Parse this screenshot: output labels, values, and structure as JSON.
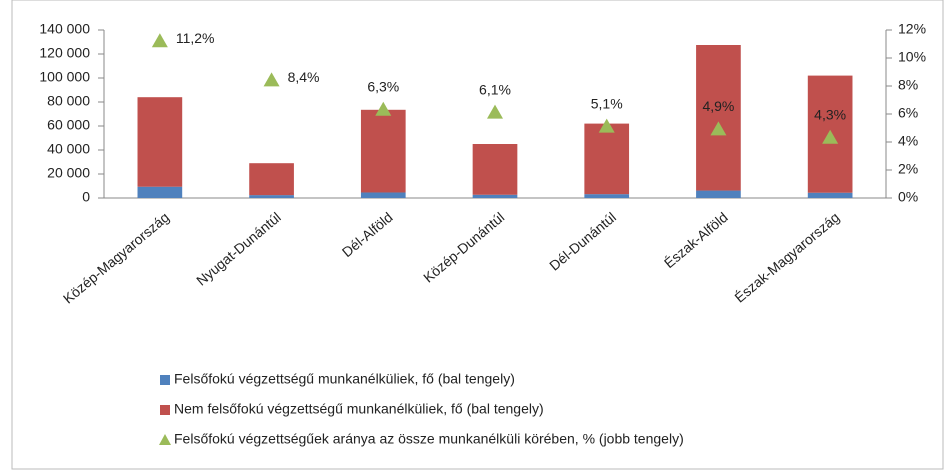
{
  "chart_data": {
    "type": "bar",
    "categories": [
      "Közép-Magyarország",
      "Nyugat-Dunántúl",
      "Dél-Alföld",
      "Közép-Dunántúl",
      "Dél-Dunántúl",
      "Észak-Alföld",
      "Észak-Magyarország"
    ],
    "stacked": true,
    "series": [
      {
        "name": "Felsőfokú végzettségű munkanélküliek, fő (bal tengely)",
        "color": "#4f81bd",
        "type": "bar",
        "values": [
          9400,
          2400,
          4600,
          2700,
          3200,
          6200,
          4400
        ]
      },
      {
        "name": "Nem felsőfokú végzettségű munkanélküliek, fő (bal tengely)",
        "color": "#c0504d",
        "type": "bar",
        "values": [
          74600,
          26600,
          68900,
          42300,
          58800,
          121300,
          97600
        ]
      },
      {
        "name": "Felsőfokú végzettségűek aránya az össze munkanélküli körében, % (jobb tengely)",
        "color": "#9bbb59",
        "type": "scatter",
        "axis": "y2",
        "values": [
          11.2,
          8.4,
          6.3,
          6.1,
          5.1,
          4.9,
          4.3
        ],
        "value_labels": [
          "11,2%",
          "8,4%",
          "6,3%",
          "6,1%",
          "5,1%",
          "4,9%",
          "4,3%"
        ]
      }
    ],
    "ylim": [
      0,
      140000
    ],
    "yticks": [
      0,
      {
        "value": 20000,
        "label": "20 000"
      },
      {
        "value": 40000,
        "label": "40 000"
      },
      {
        "value": 60000,
        "label": "60 000"
      },
      {
        "value": 80000,
        "label": "80 000"
      },
      {
        "value": 100000,
        "label": "100 000"
      },
      {
        "value": 120000,
        "label": "120 000"
      },
      {
        "value": 140000,
        "label": "140 000"
      }
    ],
    "y2lim": [
      0,
      12
    ],
    "y2ticks": [
      {
        "value": 0,
        "label": "0%"
      },
      {
        "value": 2,
        "label": "2%"
      },
      {
        "value": 4,
        "label": "4%"
      },
      {
        "value": 6,
        "label": "6%"
      },
      {
        "value": 8,
        "label": "8%"
      },
      {
        "value": 10,
        "label": "10%"
      },
      {
        "value": 12,
        "label": "12%"
      }
    ],
    "legend": "bottom"
  }
}
